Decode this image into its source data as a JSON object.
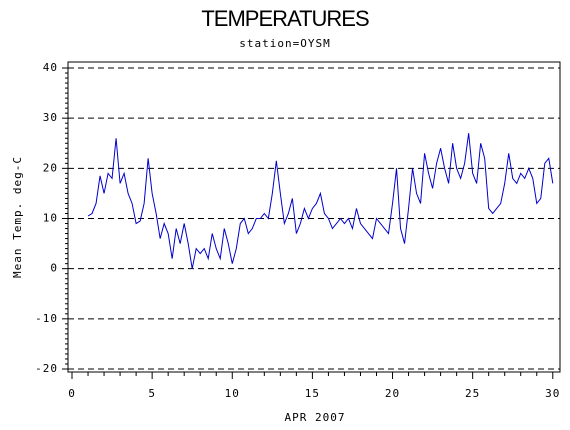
{
  "chart_data": {
    "type": "line",
    "title": "TEMPERATURES",
    "subtitle": "station=OYSM",
    "x_label": "APR 2007",
    "y_label": "Mean Temp. deg-C",
    "x": [
      1,
      1.25,
      1.5,
      1.75,
      2,
      2.25,
      2.5,
      2.75,
      3,
      3.25,
      3.5,
      3.75,
      4,
      4.25,
      4.5,
      4.75,
      5,
      5.25,
      5.5,
      5.75,
      6,
      6.25,
      6.5,
      6.75,
      7,
      7.25,
      7.5,
      7.75,
      8,
      8.25,
      8.5,
      8.75,
      9,
      9.25,
      9.5,
      9.75,
      10,
      10.25,
      10.5,
      10.75,
      11,
      11.25,
      11.5,
      11.75,
      12,
      12.25,
      12.5,
      12.75,
      13,
      13.25,
      13.5,
      13.75,
      14,
      14.25,
      14.5,
      14.75,
      15,
      15.25,
      15.5,
      15.75,
      16,
      16.25,
      16.5,
      16.75,
      17,
      17.25,
      17.5,
      17.75,
      18,
      18.25,
      18.5,
      18.75,
      19,
      19.25,
      19.5,
      19.75,
      20,
      20.25,
      20.5,
      20.75,
      21,
      21.25,
      21.5,
      21.75,
      22,
      22.25,
      22.5,
      22.75,
      23,
      23.25,
      23.5,
      23.75,
      24,
      24.25,
      24.5,
      24.75,
      25,
      25.25,
      25.5,
      25.75,
      26,
      26.25,
      26.5,
      26.75,
      27,
      27.25,
      27.5,
      27.75,
      28,
      28.25,
      28.5,
      28.75,
      29,
      29.25,
      29.5,
      29.75,
      30
    ],
    "series": [
      {
        "color": "#0000cc",
        "values": [
          10.5,
          11,
          13,
          18.5,
          15,
          19,
          18,
          26,
          17,
          19,
          15,
          13,
          9,
          9.5,
          13,
          22,
          15,
          11,
          6,
          9,
          7,
          2,
          8,
          5,
          9,
          5,
          0,
          4,
          3,
          4,
          2,
          7,
          4,
          2,
          8,
          5,
          1,
          4,
          9,
          10,
          7,
          8,
          10,
          10,
          11,
          10,
          15,
          21.5,
          15,
          9,
          11,
          14,
          7,
          9,
          12,
          10,
          12,
          13,
          15,
          11,
          10,
          8,
          9,
          10,
          9,
          10,
          8,
          12,
          9,
          8,
          7,
          6,
          10,
          9,
          8,
          7,
          13,
          20,
          8,
          5,
          12,
          20,
          15,
          13,
          23,
          19,
          16,
          21,
          24,
          20,
          17,
          25,
          20,
          18,
          21,
          27,
          19,
          17,
          25,
          22,
          12,
          11,
          12,
          13,
          17,
          23,
          18,
          17,
          19,
          18,
          20,
          18,
          13,
          14,
          21,
          22,
          17
        ]
      }
    ],
    "xlim": [
      -0.25,
      30.45
    ],
    "ylim": [
      -20.6,
      41.2
    ],
    "xticks": [
      0,
      5,
      10,
      15,
      20,
      25,
      30
    ],
    "yticks": [
      -20,
      -10,
      0,
      10,
      20,
      30,
      40
    ],
    "xminorticks": [
      1,
      2,
      3,
      4,
      6,
      7,
      8,
      9,
      11,
      12,
      13,
      14,
      16,
      17,
      18,
      19,
      21,
      22,
      23,
      24,
      26,
      27,
      28,
      29
    ],
    "yminorticks": [
      -19,
      -18,
      -17,
      -16,
      -15,
      -14,
      -13,
      -12,
      -11,
      -9,
      -8,
      -7,
      -6,
      -5,
      -4,
      -3,
      -2,
      -1,
      1,
      2,
      3,
      4,
      5,
      6,
      7,
      8,
      9,
      11,
      12,
      13,
      14,
      15,
      16,
      17,
      18,
      19,
      21,
      22,
      23,
      24,
      25,
      26,
      27,
      28,
      29,
      31,
      32,
      33,
      34,
      35,
      36,
      37,
      38,
      39
    ],
    "grid": true
  }
}
